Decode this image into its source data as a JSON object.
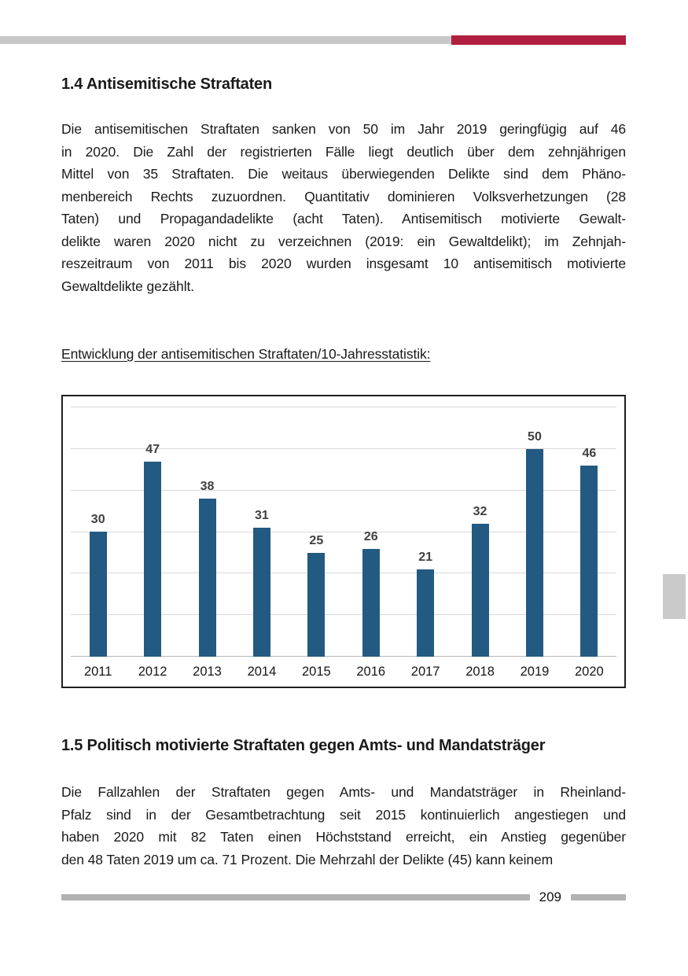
{
  "page": {
    "header": {
      "accent_gray": "#c8c8c8",
      "accent_red": "#b01f3f"
    },
    "side_tab_color": "#cacaca",
    "section_14": {
      "heading": "1.4 Antisemitische Straftaten",
      "paragraph_lines": [
        "Die antisemitischen Straftaten sanken von 50 im Jahr 2019 geringfügig auf 46",
        "in 2020. Die Zahl der registrierten Fälle liegt deutlich über dem zehnjährigen",
        "Mittel von 35 Straftaten. Die weitaus überwiegenden Delikte sind dem Phäno-",
        "menbereich Rechts zuzuordnen. Quantitativ dominieren Volksverhetzungen (28",
        "Taten) und Propagandadelikte (acht Taten). Antisemitisch motivierte Gewalt-",
        "delikte waren 2020 nicht zu verzeichnen (2019: ein Gewaltdelikt); im Zehnjah-",
        "reszeitraum von 2011 bis 2020 wurden insgesamt 10 antisemitisch motivierte",
        "Gewaltdelikte gezählt."
      ]
    },
    "chart_caption": "Entwicklung der antisemitischen Straftaten/10-Jahresstatistik:",
    "section_15": {
      "heading": "1.5 Politisch motivierte Straftaten gegen Amts- und Mandatsträger",
      "paragraph_lines": [
        "Die Fallzahlen der Straftaten gegen Amts- und Mandatsträger in Rheinland-",
        "Pfalz sind in der Gesamtbetrachtung seit 2015 kontinuierlich angestiegen und",
        "haben 2020 mit 82 Taten einen Höchststand erreicht, ein Anstieg gegenüber",
        "den 48 Taten 2019 um ca. 71 Prozent. Die Mehrzahl der Delikte (45) kann keinem"
      ]
    },
    "footer": {
      "page_number": "209",
      "bar_color": "#b2b2b2"
    }
  },
  "chart_data": {
    "type": "bar",
    "title": "",
    "xlabel": "",
    "ylabel": "",
    "categories": [
      "2011",
      "2012",
      "2013",
      "2014",
      "2015",
      "2016",
      "2017",
      "2018",
      "2019",
      "2020"
    ],
    "values": [
      30,
      47,
      38,
      31,
      25,
      26,
      21,
      32,
      50,
      46
    ],
    "ylim": [
      0,
      60
    ],
    "grid_step": 10,
    "grid": true,
    "legend": false,
    "data_labels": true,
    "bar_color": "#235a81",
    "value_label_color": "#404040",
    "gridline_color": "#d9d9d9",
    "baseline_color": "#b7b7b7"
  }
}
